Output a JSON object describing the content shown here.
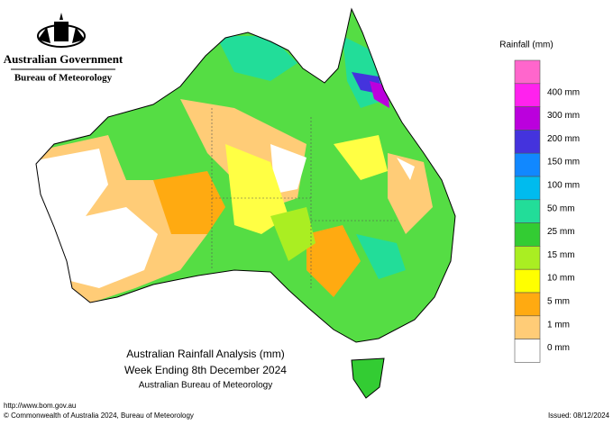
{
  "header": {
    "agency": "Australian Government",
    "bureau": "Bureau of Meteorology"
  },
  "legend": {
    "title": "Rainfall (mm)",
    "cap_color": "#ff66cc",
    "items": [
      {
        "label": "400 mm",
        "color": "#ff22ee"
      },
      {
        "label": "300 mm",
        "color": "#bb00dd"
      },
      {
        "label": "200 mm",
        "color": "#4433dd"
      },
      {
        "label": "150 mm",
        "color": "#1188ff"
      },
      {
        "label": "100 mm",
        "color": "#00bbee"
      },
      {
        "label": "50 mm",
        "color": "#22dd99"
      },
      {
        "label": "25 mm",
        "color": "#33cc33"
      },
      {
        "label": "15 mm",
        "color": "#aaee22"
      },
      {
        "label": "10 mm",
        "color": "#ffff00"
      },
      {
        "label": "5 mm",
        "color": "#ffaa11"
      },
      {
        "label": "1 mm",
        "color": "#ffcc77"
      },
      {
        "label": "0 mm",
        "color": "#ffffff"
      }
    ]
  },
  "map_title": {
    "line1": "Australian Rainfall Analysis (mm)",
    "line2": "Week Ending 8th December 2024",
    "line3": "Australian Bureau of Meteorology"
  },
  "footer": {
    "url": "http://www.bom.gov.au",
    "copyright": "© Commonwealth of Australia 2024, Bureau of Meteorology",
    "issued": "Issued: 08/12/2024"
  }
}
